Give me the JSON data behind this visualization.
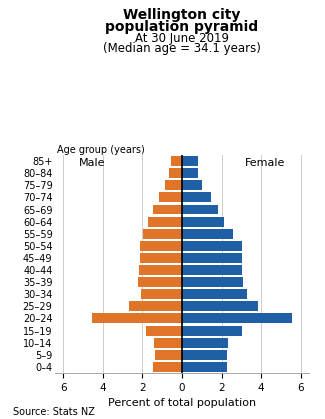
{
  "title_line1": "Wellington city",
  "title_line2": "population pyramid",
  "subtitle1": "At 30 June 2019",
  "subtitle2": "(Median age = 34.1 years)",
  "source": "Source: Stats NZ",
  "xlabel": "Percent of total population",
  "age_label": "Age group (years)",
  "male_label": "Male",
  "female_label": "Female",
  "age_groups": [
    "85+",
    "80–84",
    "75–79",
    "70–74",
    "65–69",
    "60–64",
    "55–59",
    "50–54",
    "45–49",
    "40–44",
    "35–39",
    "30–34",
    "25–29",
    "20–24",
    "15–19",
    "10–14",
    "5–9",
    "0–4"
  ],
  "male_values": [
    0.55,
    0.65,
    0.85,
    1.15,
    1.45,
    1.7,
    1.95,
    2.1,
    2.1,
    2.15,
    2.2,
    2.05,
    2.7,
    4.55,
    1.8,
    1.4,
    1.35,
    1.45
  ],
  "female_values": [
    0.8,
    0.8,
    1.0,
    1.45,
    1.8,
    2.1,
    2.6,
    3.05,
    3.05,
    3.05,
    3.1,
    3.3,
    3.85,
    5.55,
    3.05,
    2.3,
    2.25,
    2.25
  ],
  "male_color": "#e07428",
  "female_color": "#1f5fa6",
  "xlim": 6.4,
  "grid_color": "#cccccc",
  "bg_color": "#ffffff",
  "bar_height": 0.82
}
